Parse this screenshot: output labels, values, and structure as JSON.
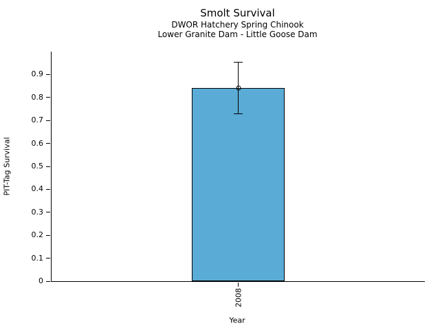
{
  "header": {
    "title": "Smolt Survival",
    "subtitle1": "DWOR Hatchery Spring Chinook",
    "subtitle2": "Lower Granite Dam - Little Goose Dam"
  },
  "chart_data": {
    "type": "bar",
    "title": "Smolt Survival",
    "subtitles": [
      "DWOR Hatchery Spring Chinook",
      "Lower Granite Dam - Little Goose Dam"
    ],
    "categories": [
      "2008"
    ],
    "values": [
      0.84
    ],
    "error_low": [
      0.73
    ],
    "error_high": [
      0.955
    ],
    "xlabel": "Year",
    "ylabel": "PIT-Tag Survival",
    "ylim": [
      0,
      1.0
    ],
    "ytick_values": [
      0,
      0.1,
      0.2,
      0.3,
      0.4,
      0.5,
      0.6,
      0.7,
      0.8,
      0.9
    ],
    "ytick_labels": [
      "0",
      "0.1",
      "0.2",
      "0.3",
      "0.4",
      "0.5",
      "0.6",
      "0.7",
      "0.8",
      "0.9"
    ],
    "grid": false,
    "legend": "none",
    "marker": "open-circle",
    "bar_color": "#5AABD5",
    "bar_edge_color": "#000000",
    "axis_color": "#000000",
    "background_color": "#ffffff",
    "bar_width_frac": 0.25
  }
}
